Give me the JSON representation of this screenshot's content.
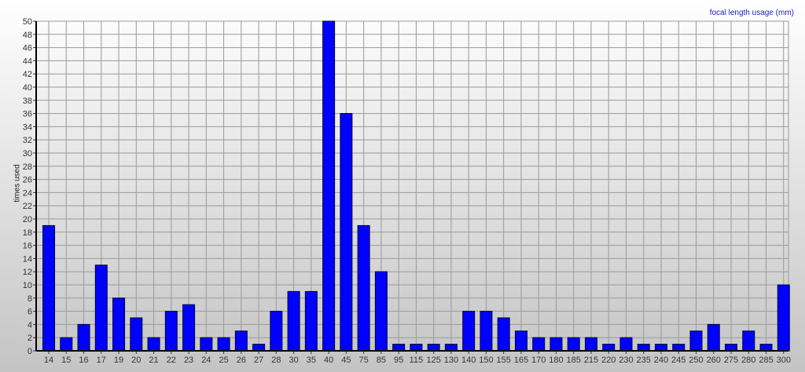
{
  "chart_data": {
    "type": "bar",
    "title": "focal length usage (mm)",
    "xlabel": "",
    "ylabel": "times used",
    "ylim": [
      0,
      50
    ],
    "ytick_step": 2,
    "grid": true,
    "bar_color": "#0000ff",
    "categories": [
      "14",
      "15",
      "16",
      "17",
      "19",
      "20",
      "21",
      "22",
      "23",
      "24",
      "25",
      "26",
      "27",
      "28",
      "30",
      "35",
      "40",
      "45",
      "75",
      "85",
      "95",
      "115",
      "125",
      "130",
      "140",
      "150",
      "155",
      "165",
      "170",
      "180",
      "185",
      "215",
      "220",
      "230",
      "235",
      "240",
      "245",
      "250",
      "260",
      "275",
      "280",
      "285",
      "300"
    ],
    "values": [
      19,
      2,
      4,
      13,
      8,
      5,
      2,
      6,
      7,
      2,
      2,
      3,
      1,
      6,
      9,
      9,
      50,
      36,
      19,
      12,
      1,
      1,
      1,
      1,
      6,
      6,
      5,
      3,
      2,
      2,
      2,
      2,
      1,
      2,
      1,
      1,
      1,
      3,
      4,
      1,
      3,
      1,
      10
    ]
  }
}
